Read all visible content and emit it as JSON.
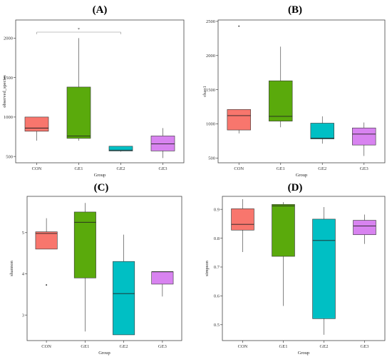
{
  "chart_data": [
    {
      "panel": "(A)",
      "type": "box",
      "xlabel": "Group",
      "ylabel": "observed_species",
      "categories": [
        "CON",
        "GE1",
        "GE2",
        "GE3"
      ],
      "ylim": [
        420,
        2230
      ],
      "yticks": [
        500,
        1000,
        1500,
        2000
      ],
      "boxes": [
        {
          "group": "CON",
          "min": 700,
          "q1": 820,
          "median": 860,
          "q3": 1000,
          "max": 1000,
          "outliers": []
        },
        {
          "group": "GE1",
          "min": 700,
          "q1": 730,
          "median": 760,
          "q3": 1380,
          "max": 2000,
          "outliers": []
        },
        {
          "group": "GE2",
          "min": 560,
          "q1": 570,
          "median": 580,
          "q3": 630,
          "max": 630,
          "outliers": []
        },
        {
          "group": "GE3",
          "min": 480,
          "q1": 570,
          "median": 660,
          "q3": 760,
          "max": 860,
          "outliers": []
        }
      ],
      "significance": {
        "from": "CON",
        "to": "GE2",
        "label": "*"
      }
    },
    {
      "panel": "(B)",
      "type": "box",
      "xlabel": "Group",
      "ylabel": "chao1",
      "categories": [
        "CON",
        "GE1",
        "GE2",
        "GE3"
      ],
      "ylim": [
        430,
        2520
      ],
      "yticks": [
        500,
        1000,
        1500,
        2000,
        2500
      ],
      "boxes": [
        {
          "group": "CON",
          "min": 860,
          "q1": 910,
          "median": 1120,
          "q3": 1210,
          "max": 1210,
          "outliers": [
            2430
          ]
        },
        {
          "group": "GE1",
          "min": 950,
          "q1": 1040,
          "median": 1110,
          "q3": 1630,
          "max": 2130,
          "outliers": []
        },
        {
          "group": "GE2",
          "min": 710,
          "q1": 780,
          "median": 790,
          "q3": 1010,
          "max": 1110,
          "outliers": []
        },
        {
          "group": "GE3",
          "min": 530,
          "q1": 690,
          "median": 850,
          "q3": 940,
          "max": 1020,
          "outliers": []
        }
      ]
    },
    {
      "panel": "(C)",
      "type": "box",
      "xlabel": "Group",
      "ylabel": "shannon",
      "categories": [
        "CON",
        "GE1",
        "GE2",
        "GE3"
      ],
      "ylim": [
        2.38,
        5.88
      ],
      "yticks": [
        3,
        4,
        5
      ],
      "boxes": [
        {
          "group": "CON",
          "min": 4.6,
          "q1": 4.6,
          "median": 4.98,
          "q3": 5.02,
          "max": 5.35,
          "outliers": [
            3.73
          ]
        },
        {
          "group": "GE1",
          "min": 2.6,
          "q1": 3.9,
          "median": 5.25,
          "q3": 5.5,
          "max": 5.72,
          "outliers": []
        },
        {
          "group": "GE2",
          "min": 2.52,
          "q1": 2.52,
          "median": 3.52,
          "q3": 4.3,
          "max": 4.95,
          "outliers": []
        },
        {
          "group": "GE3",
          "min": 3.45,
          "q1": 3.75,
          "median": 4.05,
          "q3": 4.05,
          "max": 4.05,
          "outliers": []
        }
      ]
    },
    {
      "panel": "(D)",
      "type": "box",
      "xlabel": "Group",
      "ylabel": "simpson",
      "categories": [
        "CON",
        "GE1",
        "GE2",
        "GE3"
      ],
      "ylim": [
        0.445,
        0.945
      ],
      "yticks": [
        0.5,
        0.6,
        0.7,
        0.8,
        0.9
      ],
      "boxes": [
        {
          "group": "CON",
          "min": 0.752,
          "q1": 0.828,
          "median": 0.848,
          "q3": 0.902,
          "max": 0.935,
          "outliers": []
        },
        {
          "group": "GE1",
          "min": 0.565,
          "q1": 0.737,
          "median": 0.912,
          "q3": 0.917,
          "max": 0.925,
          "outliers": []
        },
        {
          "group": "GE2",
          "min": 0.465,
          "q1": 0.521,
          "median": 0.792,
          "q3": 0.866,
          "max": 0.908,
          "outliers": []
        },
        {
          "group": "GE3",
          "min": 0.78,
          "q1": 0.812,
          "median": 0.842,
          "q3": 0.862,
          "max": 0.882,
          "outliers": []
        }
      ]
    }
  ],
  "colors": {
    "CON": "#F8766D",
    "GE1": "#5AAA0C",
    "GE2": "#00BFC4",
    "GE3": "#D883F0",
    "line": "#333333",
    "frame": "#444444"
  }
}
